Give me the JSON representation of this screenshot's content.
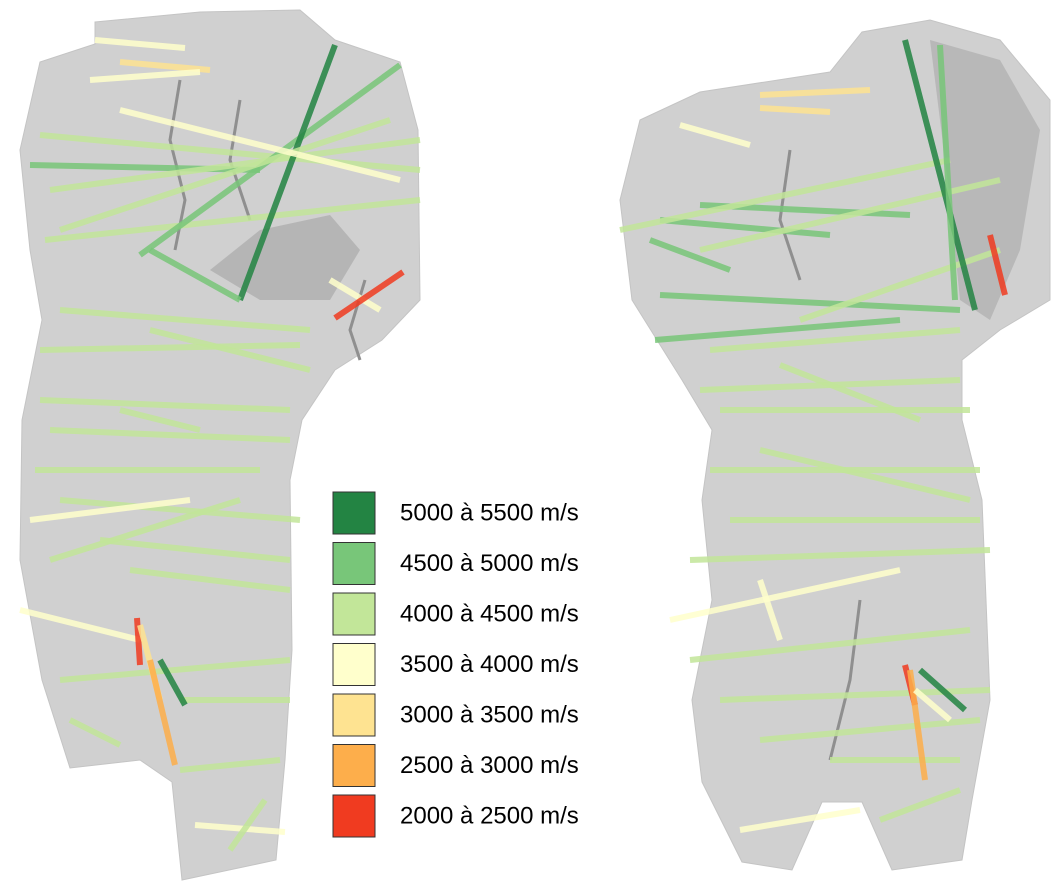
{
  "legend": {
    "items": [
      {
        "label": "5000 à 5500 m/s",
        "color": "#238443"
      },
      {
        "label": "4500 à 5000 m/s",
        "color": "#78c679"
      },
      {
        "label": "4000 à 4500 m/s",
        "color": "#c2e699"
      },
      {
        "label": "3500 à 4000 m/s",
        "color": "#ffffcc"
      },
      {
        "label": "3000 à 3500 m/s",
        "color": "#fee391"
      },
      {
        "label": "2500 à 3000 m/s",
        "color": "#fdae4b"
      },
      {
        "label": "2000 à 2500 m/s",
        "color": "#f03b20"
      }
    ]
  }
}
